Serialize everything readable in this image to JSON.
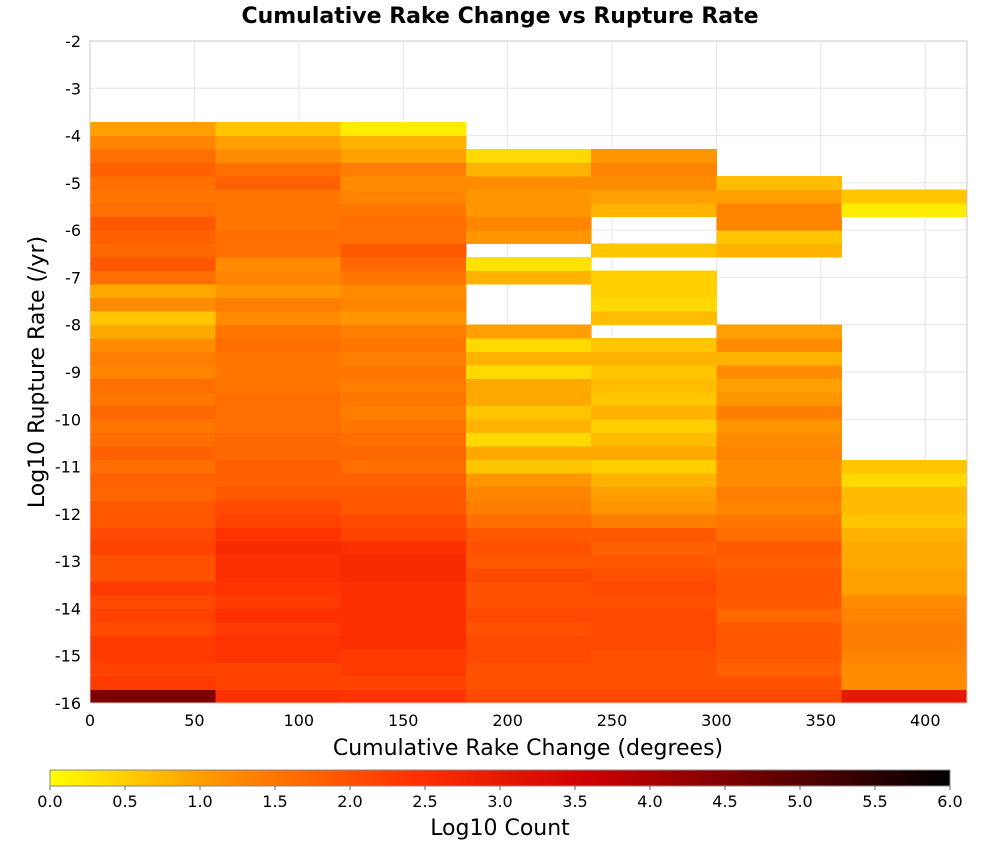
{
  "chart_data": {
    "type": "heatmap",
    "title": "Cumulative Rake Change vs Rupture Rate",
    "xlabel": "Cumulative Rake Change (degrees)",
    "ylabel": "Log10 Rupture Rate (/yr)",
    "xlim": [
      0,
      420
    ],
    "ylim": [
      -16,
      -2
    ],
    "x_ticks": [
      0,
      50,
      100,
      150,
      200,
      250,
      300,
      350,
      400
    ],
    "y_ticks": [
      -2,
      -3,
      -4,
      -5,
      -6,
      -7,
      -8,
      -9,
      -10,
      -11,
      -12,
      -13,
      -14,
      -15,
      -16
    ],
    "grid": true,
    "x_bin_edges": [
      0,
      60,
      120,
      180,
      240,
      300,
      360,
      420
    ],
    "y_bin_min": -16.0,
    "y_bin_size": 0.2857,
    "y_rows": 44,
    "colorbar": {
      "label": "Log10 Count",
      "min": 0.0,
      "max": 6.0,
      "ticks": [
        "0.0",
        "0.5",
        "1.0",
        "1.5",
        "2.0",
        "2.5",
        "3.0",
        "3.5",
        "4.0",
        "4.5",
        "5.0",
        "5.5",
        "6.0"
      ],
      "colors": [
        "#ffff00",
        "#ff8c00",
        "#ff3300",
        "#cc0000",
        "#660000",
        "#000000"
      ]
    },
    "columns": [
      {
        "x_range": [
          0,
          60
        ],
        "values": [
          4.5,
          2.3,
          2.2,
          2.3,
          2.3,
          2.1,
          2.2,
          2.1,
          2.3,
          2.0,
          2.0,
          2.2,
          2.1,
          1.9,
          1.9,
          1.7,
          1.8,
          1.6,
          1.8,
          1.6,
          1.5,
          1.7,
          1.5,
          1.6,
          1.3,
          1.4,
          1.2,
          0.9,
          0.6,
          1.2,
          0.9,
          1.6,
          1.9,
          1.7,
          1.8,
          1.9,
          1.6,
          1.5,
          1.6,
          1.8,
          1.6,
          1.3,
          1.0,
          null
        ]
      },
      {
        "x_range": [
          60,
          120
        ],
        "values": [
          2.5,
          2.2,
          2.2,
          2.4,
          2.4,
          2.3,
          2.5,
          2.3,
          2.4,
          2.5,
          2.5,
          2.6,
          2.4,
          2.2,
          2.1,
          1.9,
          1.8,
          1.8,
          1.7,
          1.7,
          1.6,
          1.6,
          1.6,
          1.5,
          1.5,
          1.5,
          1.6,
          1.5,
          1.2,
          1.4,
          1.1,
          1.3,
          1.2,
          1.6,
          1.6,
          1.5,
          1.5,
          1.5,
          1.8,
          1.6,
          1.2,
          1.0,
          0.6,
          null
        ]
      },
      {
        "x_range": [
          120,
          180
        ],
        "values": [
          2.4,
          2.2,
          2.3,
          2.3,
          2.5,
          2.5,
          2.5,
          2.5,
          2.5,
          2.6,
          2.6,
          2.5,
          2.2,
          2.1,
          1.9,
          1.9,
          1.8,
          1.6,
          1.7,
          1.6,
          1.5,
          1.4,
          1.5,
          1.4,
          1.5,
          1.4,
          1.5,
          1.4,
          1.1,
          1.3,
          1.2,
          1.5,
          1.7,
          1.9,
          1.6,
          1.6,
          1.5,
          1.3,
          1.2,
          1.4,
          1.0,
          0.8,
          0.2,
          null
        ]
      },
      {
        "x_range": [
          180,
          240
        ],
        "values": [
          2.1,
          2.0,
          2.0,
          2.1,
          2.1,
          2.0,
          2.1,
          2.0,
          2.0,
          2.1,
          1.9,
          2.0,
          1.9,
          1.6,
          1.4,
          1.3,
          1.1,
          0.6,
          0.9,
          0.4,
          0.8,
          0.6,
          0.9,
          0.9,
          0.4,
          0.8,
          0.4,
          1.0,
          null,
          null,
          null,
          0.8,
          0.3,
          null,
          1.1,
          1.3,
          1.1,
          1.1,
          1.2,
          0.8,
          0.4,
          null,
          null,
          null
        ]
      },
      {
        "x_range": [
          240,
          300
        ],
        "values": [
          2.1,
          2.0,
          2.0,
          2.0,
          2.1,
          2.1,
          2.1,
          2.0,
          2.1,
          2.0,
          1.9,
          1.8,
          1.9,
          1.4,
          1.1,
          1.0,
          0.8,
          0.5,
          0.9,
          0.7,
          0.5,
          0.8,
          0.6,
          0.7,
          0.6,
          0.8,
          0.6,
          null,
          0.7,
          0.4,
          0.5,
          0.5,
          null,
          0.6,
          null,
          null,
          0.8,
          1.0,
          1.2,
          1.3,
          1.1,
          null,
          null,
          null
        ]
      },
      {
        "x_range": [
          300,
          360
        ],
        "values": [
          2.1,
          2.0,
          1.8,
          1.9,
          1.9,
          1.9,
          1.7,
          1.9,
          1.9,
          1.9,
          1.8,
          1.9,
          1.6,
          1.5,
          1.3,
          1.4,
          1.2,
          1.2,
          1.3,
          1.2,
          1.1,
          1.4,
          1.1,
          1.0,
          1.2,
          0.8,
          1.2,
          1.0,
          null,
          null,
          null,
          null,
          null,
          0.8,
          0.6,
          1.3,
          1.3,
          1.0,
          0.7,
          null,
          null,
          null,
          null,
          null
        ]
      },
      {
        "x_range": [
          360,
          420
        ],
        "values": [
          3.0,
          1.2,
          1.2,
          1.3,
          1.4,
          1.4,
          1.3,
          1.2,
          1.0,
          1.0,
          0.9,
          0.9,
          0.8,
          0.6,
          0.7,
          0.7,
          0.4,
          0.6,
          null,
          null,
          null,
          null,
          null,
          null,
          null,
          null,
          null,
          null,
          null,
          null,
          null,
          null,
          null,
          null,
          null,
          null,
          0.2,
          0.6,
          null,
          null,
          null,
          null,
          null,
          null
        ]
      }
    ]
  }
}
